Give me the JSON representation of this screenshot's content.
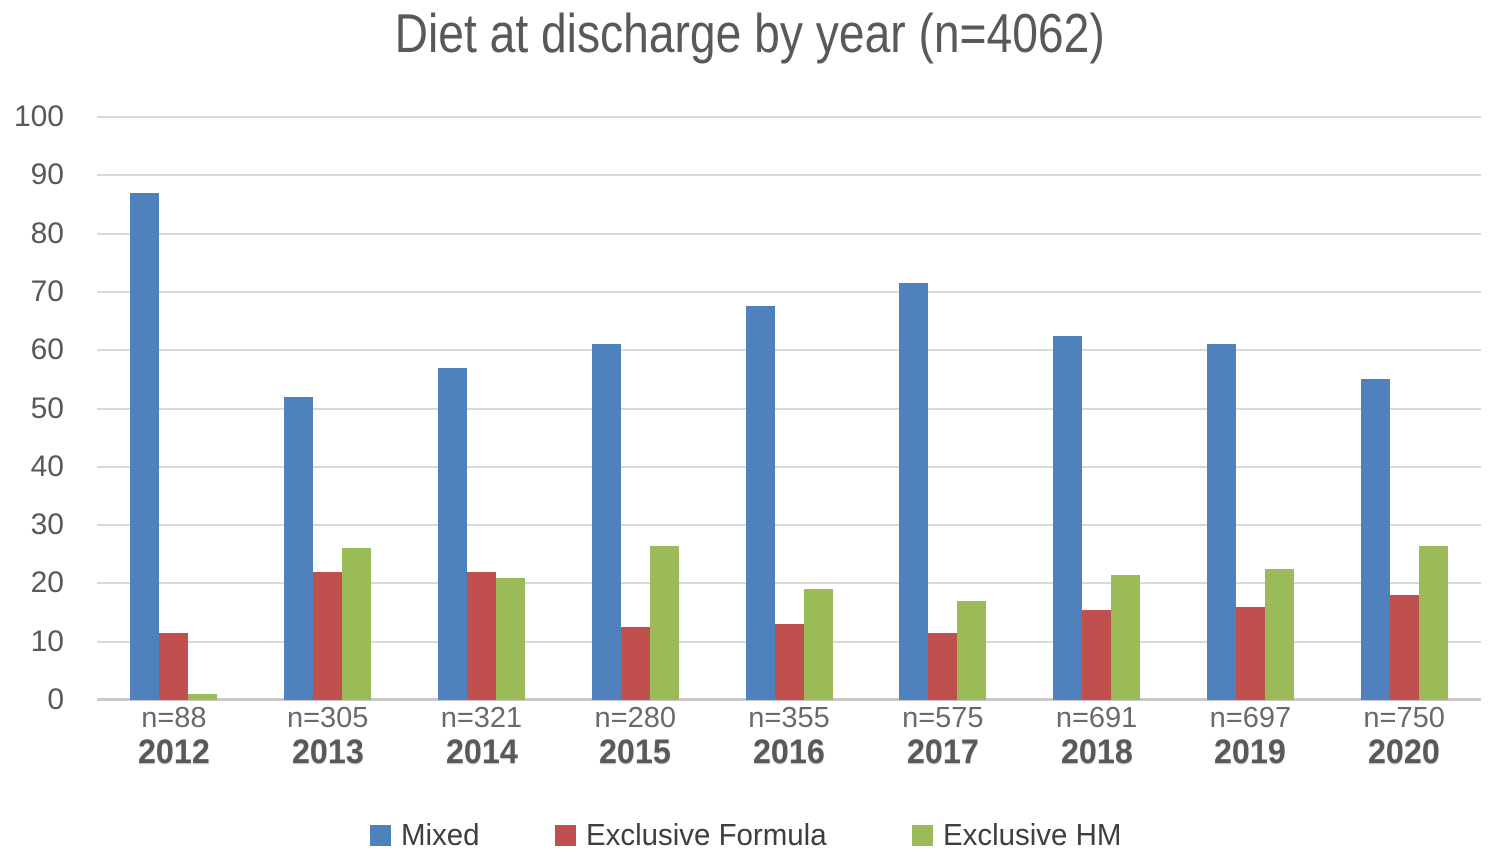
{
  "chart_data": {
    "type": "bar",
    "title": "Diet at discharge by year (n=4062)",
    "categories": [
      "2012",
      "2013",
      "2014",
      "2015",
      "2016",
      "2017",
      "2018",
      "2019",
      "2020"
    ],
    "n_labels": [
      "n=88",
      "n=305",
      "n=321",
      "n=280",
      "n=355",
      "n=575",
      "n=691",
      "n=697",
      "n=750"
    ],
    "series": [
      {
        "name": "Mixed",
        "color": "#4F81BD",
        "values": [
          87,
          52,
          57,
          61,
          67.5,
          71.5,
          62.5,
          61,
          55
        ]
      },
      {
        "name": "Exclusive Formula",
        "color": "#C0504D",
        "values": [
          11.5,
          22,
          22,
          12.5,
          13,
          11.5,
          15.5,
          16,
          18
        ]
      },
      {
        "name": "Exclusive HM",
        "color": "#9BBB59",
        "values": [
          1,
          26,
          21,
          26.5,
          19,
          17,
          21.5,
          22.5,
          26.5
        ]
      }
    ],
    "xlabel": "",
    "ylabel": "",
    "ylim": [
      0,
      100
    ],
    "yticks": [
      0,
      10,
      20,
      30,
      40,
      50,
      60,
      70,
      80,
      90,
      100
    ],
    "grid": true,
    "legend_position": "bottom"
  },
  "colors": {
    "gridline": "#D9D9D9",
    "zero_axis": "#C9C9C9",
    "tick_text": "#595959",
    "title_text": "#595959",
    "legend_text": "#3F3F3F",
    "background": "#FFFFFF"
  }
}
